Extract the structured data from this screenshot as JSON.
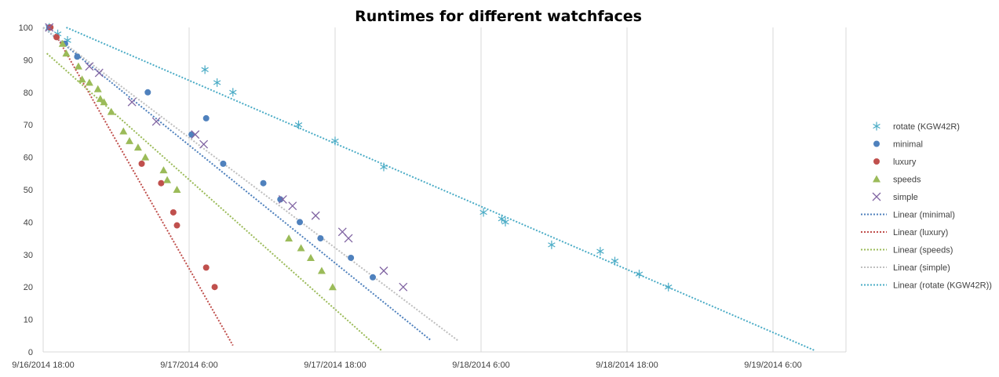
{
  "chart_data": {
    "type": "scatter",
    "title": "Runtimes for different watchfaces",
    "xlabel": "",
    "ylabel": "",
    "x_axis": {
      "kind": "datetime",
      "min": "2014-09-16T18:00",
      "max": "2014-09-19T12:00",
      "ticks": [
        {
          "value": "2014-09-16T18:00",
          "label": "9/16/2014 18:00"
        },
        {
          "value": "2014-09-17T06:00",
          "label": "9/17/2014 6:00"
        },
        {
          "value": "2014-09-17T18:00",
          "label": "9/17/2014 18:00"
        },
        {
          "value": "2014-09-18T06:00",
          "label": "9/18/2014 6:00"
        },
        {
          "value": "2014-09-18T18:00",
          "label": "9/18/2014 18:00"
        },
        {
          "value": "2014-09-19T06:00",
          "label": "9/19/2014 6:00"
        }
      ]
    },
    "y_axis": {
      "min": 0,
      "max": 100,
      "ticks": [
        0,
        10,
        20,
        30,
        40,
        50,
        60,
        70,
        80,
        90,
        100
      ]
    },
    "grid": {
      "vertical": true,
      "horizontal": false
    },
    "legend_position": "right",
    "series": [
      {
        "name": "rotate (KGW42R)",
        "marker": "asterisk",
        "color": "#4bacc6",
        "points": [
          {
            "x": "2014-09-16T18:30",
            "y": 100
          },
          {
            "x": "2014-09-16T19:12",
            "y": 98
          },
          {
            "x": "2014-09-16T20:00",
            "y": 96
          },
          {
            "x": "2014-09-17T07:18",
            "y": 87
          },
          {
            "x": "2014-09-17T08:18",
            "y": 83
          },
          {
            "x": "2014-09-17T09:36",
            "y": 80
          },
          {
            "x": "2014-09-17T15:00",
            "y": 70
          },
          {
            "x": "2014-09-17T18:00",
            "y": 65
          },
          {
            "x": "2014-09-17T22:00",
            "y": 57
          },
          {
            "x": "2014-09-18T06:12",
            "y": 43
          },
          {
            "x": "2014-09-18T07:42",
            "y": 41
          },
          {
            "x": "2014-09-18T08:00",
            "y": 40
          },
          {
            "x": "2014-09-18T11:48",
            "y": 33
          },
          {
            "x": "2014-09-18T15:48",
            "y": 31
          },
          {
            "x": "2014-09-18T17:00",
            "y": 28
          },
          {
            "x": "2014-09-18T19:00",
            "y": 24
          },
          {
            "x": "2014-09-18T21:24",
            "y": 20
          }
        ]
      },
      {
        "name": "minimal",
        "marker": "circle",
        "color": "#4f81bd",
        "points": [
          {
            "x": "2014-09-16T18:30",
            "y": 100
          },
          {
            "x": "2014-09-16T19:48",
            "y": 95
          },
          {
            "x": "2014-09-16T20:48",
            "y": 91
          },
          {
            "x": "2014-09-17T02:36",
            "y": 80
          },
          {
            "x": "2014-09-17T07:24",
            "y": 72
          },
          {
            "x": "2014-09-17T06:12",
            "y": 67
          },
          {
            "x": "2014-09-17T08:48",
            "y": 58
          },
          {
            "x": "2014-09-17T12:06",
            "y": 52
          },
          {
            "x": "2014-09-17T13:30",
            "y": 47
          },
          {
            "x": "2014-09-17T15:06",
            "y": 40
          },
          {
            "x": "2014-09-17T16:48",
            "y": 35
          },
          {
            "x": "2014-09-17T19:18",
            "y": 29
          },
          {
            "x": "2014-09-17T21:06",
            "y": 23
          }
        ]
      },
      {
        "name": "luxury",
        "marker": "circle",
        "color": "#c0504d",
        "points": [
          {
            "x": "2014-09-16T18:36",
            "y": 100
          },
          {
            "x": "2014-09-16T19:06",
            "y": 97
          },
          {
            "x": "2014-09-17T02:06",
            "y": 58
          },
          {
            "x": "2014-09-17T03:42",
            "y": 52
          },
          {
            "x": "2014-09-17T04:42",
            "y": 43
          },
          {
            "x": "2014-09-17T05:00",
            "y": 39
          },
          {
            "x": "2014-09-17T07:24",
            "y": 26
          },
          {
            "x": "2014-09-17T08:06",
            "y": 20
          }
        ]
      },
      {
        "name": "speeds",
        "marker": "triangle",
        "color": "#9bbb59",
        "points": [
          {
            "x": "2014-09-16T19:36",
            "y": 95
          },
          {
            "x": "2014-09-16T19:54",
            "y": 92
          },
          {
            "x": "2014-09-16T20:54",
            "y": 88
          },
          {
            "x": "2014-09-16T21:12",
            "y": 84
          },
          {
            "x": "2014-09-16T21:48",
            "y": 83
          },
          {
            "x": "2014-09-16T22:30",
            "y": 81
          },
          {
            "x": "2014-09-16T22:42",
            "y": 78
          },
          {
            "x": "2014-09-16T23:00",
            "y": 77
          },
          {
            "x": "2014-09-16T23:36",
            "y": 74
          },
          {
            "x": "2014-09-17T00:36",
            "y": 68
          },
          {
            "x": "2014-09-17T01:06",
            "y": 65
          },
          {
            "x": "2014-09-17T01:48",
            "y": 63
          },
          {
            "x": "2014-09-17T02:24",
            "y": 60
          },
          {
            "x": "2014-09-17T03:54",
            "y": 56
          },
          {
            "x": "2014-09-17T04:12",
            "y": 53
          },
          {
            "x": "2014-09-17T05:00",
            "y": 50
          },
          {
            "x": "2014-09-17T14:12",
            "y": 35
          },
          {
            "x": "2014-09-17T15:12",
            "y": 32
          },
          {
            "x": "2014-09-17T16:00",
            "y": 29
          },
          {
            "x": "2014-09-17T16:54",
            "y": 25
          },
          {
            "x": "2014-09-17T17:48",
            "y": 20
          }
        ]
      },
      {
        "name": "simple",
        "marker": "x",
        "color": "#8064a2",
        "points": [
          {
            "x": "2014-09-16T18:30",
            "y": 100
          },
          {
            "x": "2014-09-16T21:48",
            "y": 88
          },
          {
            "x": "2014-09-16T22:36",
            "y": 86
          },
          {
            "x": "2014-09-17T01:18",
            "y": 77
          },
          {
            "x": "2014-09-17T03:18",
            "y": 71
          },
          {
            "x": "2014-09-17T06:30",
            "y": 67
          },
          {
            "x": "2014-09-17T07:12",
            "y": 64
          },
          {
            "x": "2014-09-17T13:42",
            "y": 47
          },
          {
            "x": "2014-09-17T14:30",
            "y": 45
          },
          {
            "x": "2014-09-17T16:24",
            "y": 42
          },
          {
            "x": "2014-09-17T18:36",
            "y": 37
          },
          {
            "x": "2014-09-17T19:06",
            "y": 35
          },
          {
            "x": "2014-09-17T22:00",
            "y": 25
          },
          {
            "x": "2014-09-17T23:36",
            "y": 20
          }
        ]
      }
    ],
    "trendlines": [
      {
        "name": "Linear (minimal)",
        "type": "linear",
        "color": "#4f81bd",
        "style": "dotted",
        "from": {
          "x": "2014-09-16T18:00",
          "y": 100
        },
        "to": {
          "x": "2014-09-18T01:54",
          "y": 3.5
        }
      },
      {
        "name": "Linear (luxury)",
        "type": "linear",
        "color": "#c0504d",
        "style": "dotted",
        "from": {
          "x": "2014-09-16T19:00",
          "y": 98
        },
        "to": {
          "x": "2014-09-17T09:36",
          "y": 2
        }
      },
      {
        "name": "Linear (speeds)",
        "type": "linear",
        "color": "#9bbb59",
        "style": "dotted",
        "from": {
          "x": "2014-09-16T18:18",
          "y": 92
        },
        "to": {
          "x": "2014-09-17T21:48",
          "y": 0.5
        }
      },
      {
        "name": "Linear (simple)",
        "type": "linear",
        "color": "#bfbfbf",
        "style": "dotted",
        "from": {
          "x": "2014-09-16T18:00",
          "y": 100
        },
        "to": {
          "x": "2014-09-18T04:06",
          "y": 3.5
        }
      },
      {
        "name": "Linear (rotate (KGW42R))",
        "type": "linear",
        "color": "#4bacc6",
        "style": "dotted",
        "from": {
          "x": "2014-09-16T19:54",
          "y": 100
        },
        "to": {
          "x": "2014-09-19T09:24",
          "y": 0.5
        }
      }
    ]
  }
}
